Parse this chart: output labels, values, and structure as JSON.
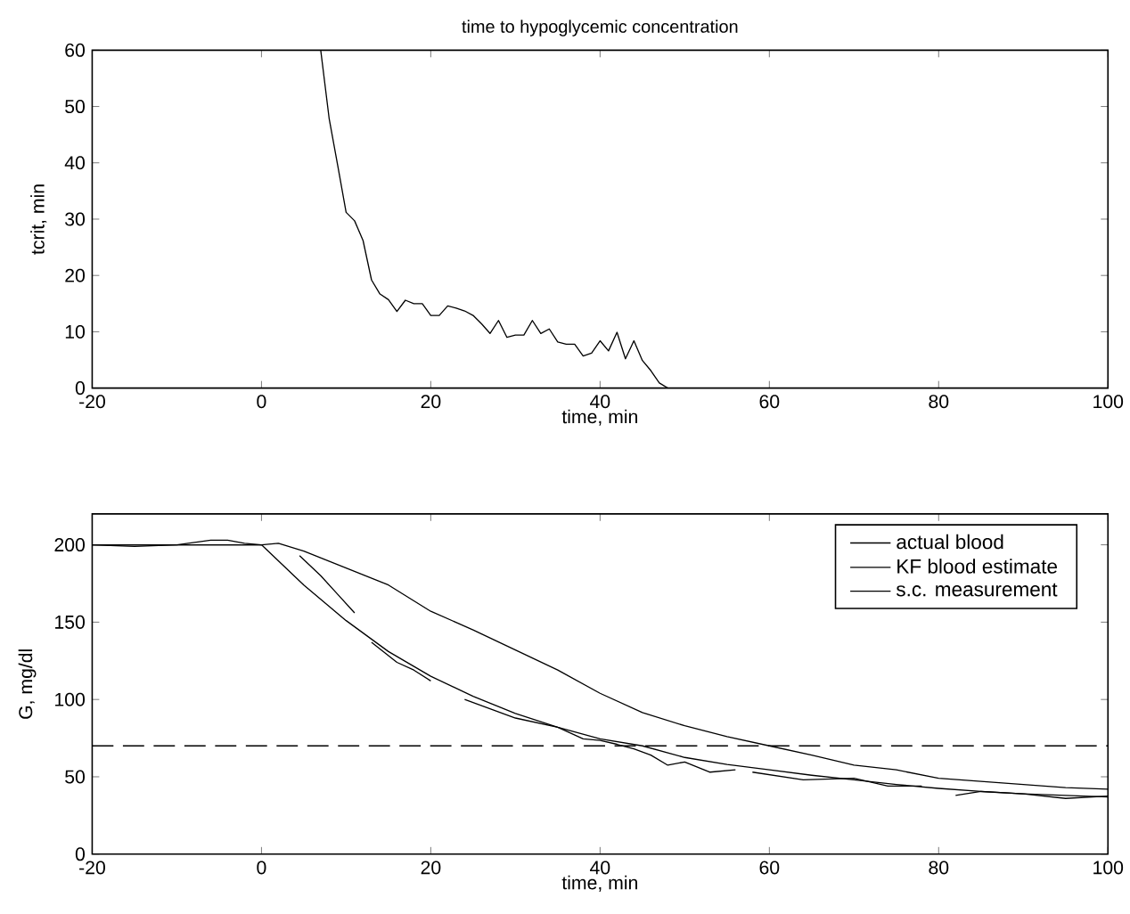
{
  "chart_data": [
    {
      "type": "line",
      "title": "time to hypoglycemic concentration",
      "xlabel": "time, min",
      "ylabel": "tcrit, min",
      "xlim": [
        -20,
        100
      ],
      "ylim": [
        0,
        60
      ],
      "xticks": [
        -20,
        0,
        20,
        40,
        60,
        80,
        100
      ],
      "yticks": [
        0,
        10,
        20,
        30,
        40,
        50,
        60
      ],
      "grid": false,
      "legend": false,
      "line_style": "solid",
      "marker": "none",
      "series": [
        {
          "color": "#000000",
          "x": [
            7,
            8,
            9,
            10,
            11,
            12,
            13,
            14,
            15,
            16,
            17,
            18,
            19,
            20,
            21,
            22,
            23,
            24,
            25,
            26,
            27,
            28,
            29,
            30,
            31,
            32,
            33,
            34,
            35,
            36,
            37,
            38,
            39,
            40,
            41,
            42,
            43,
            44,
            45,
            46,
            47,
            48,
            100
          ],
          "values": [
            60,
            47.8,
            39.6,
            31.2,
            29.7,
            26.2,
            19.2,
            16.7,
            15.7,
            13.6,
            15.6,
            15,
            15,
            12.9,
            12.9,
            14.6,
            14.2,
            13.7,
            12.9,
            11.4,
            9.7,
            12,
            9,
            9.4,
            9.4,
            12,
            9.7,
            10.5,
            8.2,
            7.8,
            7.8,
            5.7,
            6.2,
            8.4,
            6.6,
            9.9,
            5.2,
            8.4,
            4.9,
            3.1,
            0.9,
            0,
            0
          ]
        }
      ]
    },
    {
      "type": "line",
      "xlabel": "time, min",
      "ylabel": "G, mg/dl",
      "xlim": [
        -20,
        100
      ],
      "ylim": [
        0,
        220
      ],
      "xticks": [
        -20,
        0,
        20,
        40,
        60,
        80,
        100
      ],
      "yticks": [
        0,
        50,
        100,
        150,
        200
      ],
      "grid": false,
      "legend": "top right",
      "line_style": "solid",
      "marker": "none",
      "ref_lines": [
        {
          "axis": "y",
          "value": 70,
          "color": "#000000",
          "line_style": "dashed"
        }
      ],
      "series": [
        {
          "name": "actual blood",
          "color": "#000000",
          "x": [
            -20,
            -10,
            0,
            5,
            10,
            15,
            20,
            25,
            30,
            35,
            40,
            45,
            50,
            55,
            60,
            65,
            70,
            75,
            80,
            85,
            90,
            95,
            100
          ],
          "values": [
            200,
            200,
            200,
            174,
            151,
            131,
            115,
            102,
            91,
            82,
            74.5,
            70,
            62.5,
            58,
            54.5,
            51,
            48,
            45,
            42.5,
            40.5,
            39,
            38,
            37
          ]
        },
        {
          "name": "KF blood estimate",
          "color": "#000000",
          "x": [
            -20,
            -15,
            -10,
            -6,
            -4,
            -2,
            0,
            2,
            4.5,
            7,
            9,
            11,
            12,
            13,
            16,
            18,
            20,
            21,
            24,
            27,
            30,
            35,
            38,
            40,
            42,
            44,
            46,
            48,
            50,
            53,
            56,
            57,
            58,
            64,
            70,
            74,
            78,
            80,
            82,
            85,
            90,
            95,
            100
          ],
          "values": [
            200,
            199,
            200,
            203,
            203,
            201,
            200,
            null,
            193,
            180,
            168,
            156,
            null,
            137,
            124,
            119,
            112,
            null,
            100,
            94,
            88,
            82,
            74.5,
            73.5,
            71,
            68,
            64,
            57.5,
            59.6,
            53,
            54.5,
            null,
            53,
            48,
            49,
            44,
            44,
            null,
            38,
            40.5,
            39,
            36,
            37.5
          ]
        },
        {
          "name": "s.c. measurement",
          "color": "#000000",
          "x": [
            -20,
            -10,
            0,
            2,
            5,
            10,
            15,
            20,
            25,
            30,
            35,
            40,
            45,
            50,
            55,
            60,
            65,
            70,
            75,
            80,
            85,
            90,
            95,
            100
          ],
          "values": [
            200,
            200,
            200,
            201,
            196,
            185,
            174,
            157,
            145,
            132,
            119,
            104,
            91.5,
            83,
            76,
            70,
            64,
            57.5,
            54.5,
            49,
            47,
            45,
            43,
            42
          ]
        }
      ]
    }
  ]
}
